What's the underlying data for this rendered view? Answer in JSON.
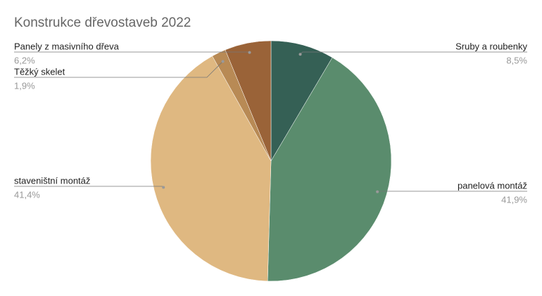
{
  "chart_data": {
    "type": "pie",
    "title": "Konstrukce dřevostaveb 2022",
    "categories": [
      "Sruby a roubenky",
      "panelová montáž",
      "staveništní montáž",
      "Těžký skelet",
      "Panely z masivního dřeva"
    ],
    "values": [
      8.5,
      41.9,
      41.4,
      1.9,
      6.2
    ],
    "value_labels": [
      "8,5%",
      "41,9%",
      "41,4%",
      "1,9%",
      "6,2%"
    ],
    "colors": [
      "#356055",
      "#5a8c6d",
      "#dfb881",
      "#b88a55",
      "#9a6338"
    ]
  }
}
